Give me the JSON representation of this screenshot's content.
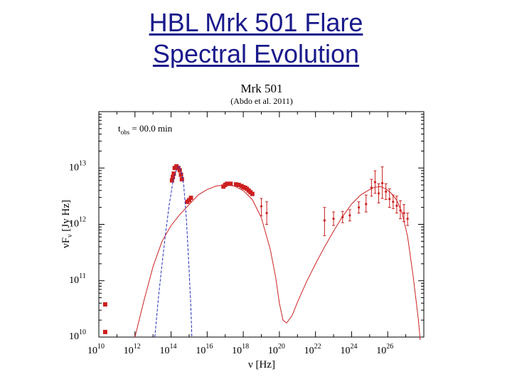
{
  "slide": {
    "title_line1": "HBL Mrk 501 Flare",
    "title_line2": "Spectral Evolution"
  },
  "chart_data": {
    "type": "scatter",
    "title": "Mrk 501",
    "subtitle": "(Abdo et al. 2011)",
    "annotation": {
      "main": "t",
      "sub": "obs",
      "rest": " = 00.0 min"
    },
    "xlabel": "ν [Hz]",
    "ylabel": {
      "main": "νF",
      "sub": "ν",
      "rest": " [Jy Hz]"
    },
    "x_log": true,
    "y_log": true,
    "xlim": [
      10000000000.0,
      1e+28
    ],
    "ylim": [
      10000000000.0,
      100000000000000.0
    ],
    "x_ticks": [
      {
        "base": "10",
        "exp": "10",
        "value": 10
      },
      {
        "base": "10",
        "exp": "12",
        "value": 12
      },
      {
        "base": "10",
        "exp": "14",
        "value": 14
      },
      {
        "base": "10",
        "exp": "16",
        "value": 16
      },
      {
        "base": "10",
        "exp": "18",
        "value": 18
      },
      {
        "base": "10",
        "exp": "20",
        "value": 20
      },
      {
        "base": "10",
        "exp": "22",
        "value": 22
      },
      {
        "base": "10",
        "exp": "24",
        "value": 24
      },
      {
        "base": "10",
        "exp": "26",
        "value": 26
      }
    ],
    "y_ticks": [
      {
        "base": "10",
        "exp": "10",
        "value": 10
      },
      {
        "base": "10",
        "exp": "11",
        "value": 11
      },
      {
        "base": "10",
        "exp": "12",
        "value": 12
      },
      {
        "base": "10",
        "exp": "13",
        "value": 13
      }
    ],
    "colors": {
      "data": "#cc1f1f",
      "model": "#cc2222",
      "thermal": "#2233bb",
      "axis": "#000000"
    },
    "series": [
      {
        "kind": "square_points",
        "points_log": [
          [
            10.35,
            10.58
          ],
          [
            10.35,
            10.09
          ],
          [
            14.05,
            12.78
          ],
          [
            14.1,
            12.84
          ],
          [
            14.15,
            12.9
          ],
          [
            14.2,
            13.0
          ],
          [
            14.3,
            13.03
          ],
          [
            14.4,
            13.0
          ],
          [
            14.48,
            12.96
          ],
          [
            14.55,
            12.88
          ],
          [
            14.6,
            12.8
          ],
          [
            14.9,
            12.4
          ],
          [
            15.0,
            12.43
          ],
          [
            15.1,
            12.47
          ],
          [
            16.9,
            12.67
          ],
          [
            17.0,
            12.7
          ],
          [
            17.1,
            12.72
          ],
          [
            17.2,
            12.72
          ],
          [
            17.3,
            12.72
          ],
          [
            17.6,
            12.71
          ],
          [
            17.75,
            12.7
          ],
          [
            17.9,
            12.68
          ],
          [
            18.0,
            12.66
          ],
          [
            18.1,
            12.65
          ],
          [
            18.2,
            12.63
          ],
          [
            18.3,
            12.6
          ],
          [
            18.4,
            12.57
          ],
          [
            18.5,
            12.54
          ]
        ]
      },
      {
        "kind": "error_points",
        "points_log": [
          [
            19.0,
            12.32,
            12.46,
            12.15
          ],
          [
            19.3,
            12.2,
            12.4,
            12.0
          ],
          [
            22.5,
            12.07,
            12.3,
            11.8
          ],
          [
            23.0,
            12.1,
            12.22,
            11.98
          ],
          [
            23.5,
            12.13,
            12.23,
            12.03
          ],
          [
            23.9,
            12.16,
            12.26,
            12.06
          ],
          [
            24.4,
            12.3,
            12.4,
            12.2
          ],
          [
            24.8,
            12.36,
            12.52,
            12.22
          ],
          [
            25.1,
            12.65,
            12.8,
            12.5
          ],
          [
            25.3,
            12.75,
            12.95,
            12.55
          ],
          [
            25.5,
            12.55,
            12.72,
            12.38
          ],
          [
            25.7,
            12.73,
            13.02,
            12.46
          ],
          [
            25.9,
            12.58,
            12.72,
            12.44
          ],
          [
            26.1,
            12.45,
            12.63,
            12.3
          ],
          [
            26.3,
            12.4,
            12.52,
            12.28
          ],
          [
            26.5,
            12.33,
            12.5,
            12.2
          ],
          [
            26.7,
            12.25,
            12.42,
            12.1
          ],
          [
            26.9,
            12.2,
            12.35,
            12.05
          ],
          [
            27.1,
            12.1,
            12.2,
            11.98
          ]
        ]
      },
      {
        "kind": "model_line",
        "points_log": [
          [
            12.0,
            10.0
          ],
          [
            12.5,
            10.65
          ],
          [
            13.0,
            11.25
          ],
          [
            13.5,
            11.7
          ],
          [
            14.0,
            11.98
          ],
          [
            14.5,
            12.18
          ],
          [
            15.0,
            12.35
          ],
          [
            15.5,
            12.52
          ],
          [
            16.0,
            12.62
          ],
          [
            16.5,
            12.68
          ],
          [
            17.0,
            12.7
          ],
          [
            17.5,
            12.68
          ],
          [
            18.0,
            12.6
          ],
          [
            18.5,
            12.44
          ],
          [
            19.0,
            12.12
          ],
          [
            19.5,
            11.55
          ],
          [
            19.8,
            11.05
          ],
          [
            20.0,
            10.6
          ],
          [
            20.2,
            10.3
          ],
          [
            20.4,
            10.25
          ],
          [
            20.7,
            10.38
          ],
          [
            21.0,
            10.62
          ],
          [
            21.5,
            10.98
          ],
          [
            22.0,
            11.3
          ],
          [
            22.5,
            11.6
          ],
          [
            23.0,
            11.88
          ],
          [
            23.5,
            12.14
          ],
          [
            24.0,
            12.36
          ],
          [
            24.5,
            12.52
          ],
          [
            25.0,
            12.62
          ],
          [
            25.3,
            12.66
          ],
          [
            25.6,
            12.67
          ],
          [
            25.9,
            12.63
          ],
          [
            26.2,
            12.55
          ],
          [
            26.5,
            12.43
          ],
          [
            26.8,
            12.2
          ],
          [
            27.1,
            11.78
          ],
          [
            27.4,
            11.1
          ],
          [
            27.7,
            10.3
          ],
          [
            27.8,
            9.95
          ]
        ]
      },
      {
        "kind": "thermal_line",
        "points_log": [
          [
            13.1,
            10.0
          ],
          [
            13.3,
            10.7
          ],
          [
            13.5,
            11.3
          ],
          [
            13.7,
            11.85
          ],
          [
            13.9,
            12.35
          ],
          [
            14.1,
            12.75
          ],
          [
            14.3,
            12.97
          ],
          [
            14.45,
            13.03
          ],
          [
            14.6,
            12.9
          ],
          [
            14.7,
            12.7
          ],
          [
            14.85,
            12.1
          ],
          [
            15.0,
            11.2
          ],
          [
            15.1,
            10.5
          ],
          [
            15.15,
            10.0
          ]
        ]
      }
    ]
  }
}
